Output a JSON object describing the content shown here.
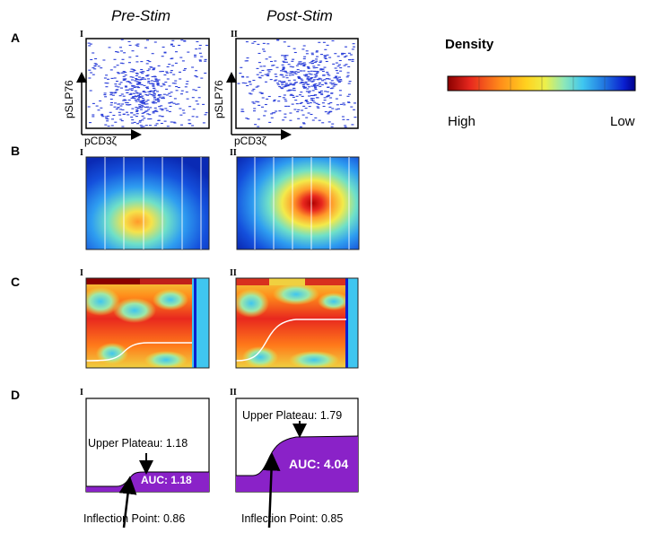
{
  "columns": {
    "pre": "Pre-Stim",
    "post": "Post-Stim"
  },
  "rows": {
    "a": "A",
    "b": "B",
    "c": "C",
    "d": "D"
  },
  "panels": {
    "left": "I",
    "right": "II"
  },
  "axes": {
    "x": "pCD3ζ",
    "y": "pSLP76"
  },
  "legend": {
    "title": "Density",
    "high": "High",
    "low": "Low",
    "colors": [
      "#8b0000",
      "#e8281e",
      "#ff8c1a",
      "#ffd21f",
      "#ecf04a",
      "#8ee8b8",
      "#3fc6f0",
      "#1f72e0",
      "#0a1fd0",
      "#00008b"
    ]
  },
  "row_d": {
    "pre": {
      "upper_plateau": "Upper Plateau: 1.18",
      "auc": "AUC: 1.18",
      "inflection": "Inflection Point: 0.86"
    },
    "post": {
      "upper_plateau": "Upper Plateau: 1.79",
      "auc": "AUC: 4.04",
      "inflection": "Inflection Point: 0.85"
    },
    "fill_color": "#8a22c8"
  }
}
